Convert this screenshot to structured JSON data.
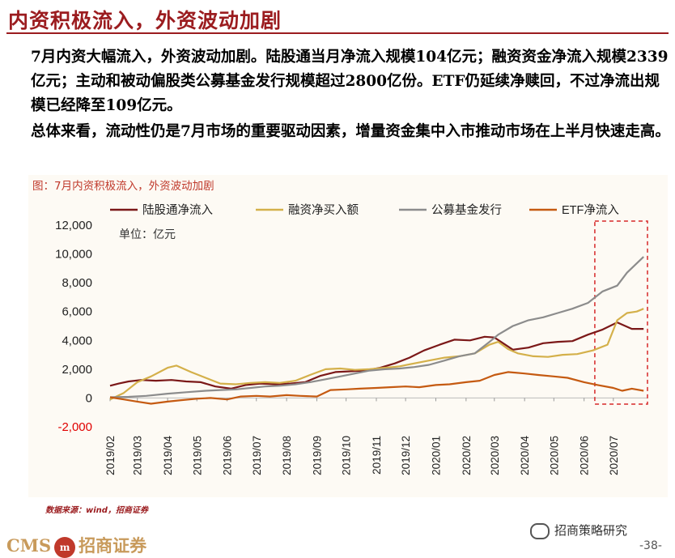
{
  "header": {
    "title": "内资积极流入，外资波动加剧",
    "paragraph1": "7月内资大幅流入，外资波动加剧。陆股通当月净流入规模104亿元；融资资金净流入规模2339亿元；主动和被动偏股类公募基金发行规模超过2800亿份。ETF仍延续净赎回，不过净流出规模已经降至109亿元。",
    "paragraph2": "总体来看，流动性仍是7月市场的重要驱动因素，增量资金集中入市推动市场在上半月快速走高。"
  },
  "chart_label": "图：7月内资积极流入，外资波动加剧",
  "source": "数据来源：wind，招商证券",
  "footer": {
    "brand": "CMS",
    "logo_text": "m",
    "brand_cn": "招商证券",
    "wechat": "招商策略研究",
    "page": "-38-"
  },
  "colors": {
    "陆股通净流入": "#7b1818",
    "融资净买入额": "#d4b04a",
    "公募基金发行": "#8c8c8c",
    "ETF净流入": "#c55a11",
    "highlight": "#d62728"
  },
  "chart_data": {
    "type": "line",
    "unit_label": "单位：亿元",
    "ylim": [
      -2000,
      12000
    ],
    "yticks": [
      -2000,
      0,
      2000,
      4000,
      6000,
      8000,
      10000,
      12000
    ],
    "ytick_labels": [
      "-2,000",
      "0",
      "2,000",
      "4,000",
      "6,000",
      "8,000",
      "10,000",
      "12,000"
    ],
    "x_range": [
      "2019-02-01",
      "2020-08-05"
    ],
    "xticks": [
      "2019/02",
      "2019/03",
      "2019/04",
      "2019/05",
      "2019/06",
      "2019/07",
      "2019/08",
      "2019/09",
      "2019/10",
      "2019/11",
      "2019/12",
      "2020/01",
      "2020/02",
      "2020/03",
      "2020/04",
      "2020/05",
      "2020/06",
      "2020/07"
    ],
    "highlight_range": [
      "2020-06-12",
      "2020-08-05"
    ],
    "legend_position": "top",
    "series": [
      {
        "name": "陆股通净流入",
        "points": [
          [
            "2019-02-01",
            850
          ],
          [
            "2019-02-10",
            1000
          ],
          [
            "2019-02-20",
            1150
          ],
          [
            "2019-03-05",
            1250
          ],
          [
            "2019-03-20",
            1200
          ],
          [
            "2019-04-05",
            1250
          ],
          [
            "2019-04-20",
            1150
          ],
          [
            "2019-05-05",
            1100
          ],
          [
            "2019-05-20",
            800
          ],
          [
            "2019-06-05",
            650
          ],
          [
            "2019-06-20",
            900
          ],
          [
            "2019-07-05",
            1000
          ],
          [
            "2019-07-20",
            950
          ],
          [
            "2019-08-05",
            1000
          ],
          [
            "2019-08-20",
            1100
          ],
          [
            "2019-09-05",
            1550
          ],
          [
            "2019-09-20",
            1800
          ],
          [
            "2019-10-05",
            1850
          ],
          [
            "2019-10-20",
            1900
          ],
          [
            "2019-11-05",
            2100
          ],
          [
            "2019-11-20",
            2400
          ],
          [
            "2019-12-05",
            2800
          ],
          [
            "2019-12-20",
            3300
          ],
          [
            "2020-01-05",
            3700
          ],
          [
            "2020-01-20",
            4050
          ],
          [
            "2020-02-05",
            4000
          ],
          [
            "2020-02-20",
            4250
          ],
          [
            "2020-03-01",
            4200
          ],
          [
            "2020-03-10",
            3800
          ],
          [
            "2020-03-20",
            3350
          ],
          [
            "2020-04-05",
            3500
          ],
          [
            "2020-04-20",
            3800
          ],
          [
            "2020-05-05",
            3900
          ],
          [
            "2020-05-20",
            3950
          ],
          [
            "2020-06-05",
            4400
          ],
          [
            "2020-06-20",
            4750
          ],
          [
            "2020-07-05",
            5250
          ],
          [
            "2020-07-20",
            4800
          ],
          [
            "2020-08-01",
            4800
          ]
        ]
      },
      {
        "name": "融资净买入额",
        "points": [
          [
            "2019-02-01",
            -100
          ],
          [
            "2019-02-15",
            350
          ],
          [
            "2019-03-01",
            1100
          ],
          [
            "2019-03-15",
            1500
          ],
          [
            "2019-04-01",
            2100
          ],
          [
            "2019-04-10",
            2250
          ],
          [
            "2019-04-25",
            1800
          ],
          [
            "2019-05-10",
            1400
          ],
          [
            "2019-05-25",
            1000
          ],
          [
            "2019-06-10",
            950
          ],
          [
            "2019-06-25",
            1050
          ],
          [
            "2019-07-10",
            1100
          ],
          [
            "2019-07-25",
            1050
          ],
          [
            "2019-08-10",
            1200
          ],
          [
            "2019-08-25",
            1600
          ],
          [
            "2019-09-10",
            2000
          ],
          [
            "2019-09-25",
            2050
          ],
          [
            "2019-10-10",
            1950
          ],
          [
            "2019-10-25",
            2000
          ],
          [
            "2019-11-10",
            2100
          ],
          [
            "2019-11-25",
            2200
          ],
          [
            "2019-12-10",
            2400
          ],
          [
            "2019-12-25",
            2600
          ],
          [
            "2020-01-10",
            2800
          ],
          [
            "2020-01-25",
            2900
          ],
          [
            "2020-02-10",
            3100
          ],
          [
            "2020-02-25",
            3700
          ],
          [
            "2020-03-05",
            3900
          ],
          [
            "2020-03-15",
            3400
          ],
          [
            "2020-03-25",
            3100
          ],
          [
            "2020-04-10",
            2900
          ],
          [
            "2020-04-25",
            2850
          ],
          [
            "2020-05-10",
            3000
          ],
          [
            "2020-05-25",
            3050
          ],
          [
            "2020-06-10",
            3300
          ],
          [
            "2020-06-25",
            3700
          ],
          [
            "2020-07-05",
            5400
          ],
          [
            "2020-07-15",
            5900
          ],
          [
            "2020-07-25",
            6000
          ],
          [
            "2020-08-01",
            6200
          ]
        ]
      },
      {
        "name": "公募基金发行",
        "points": [
          [
            "2019-02-01",
            50
          ],
          [
            "2019-02-20",
            80
          ],
          [
            "2019-03-10",
            150
          ],
          [
            "2019-04-01",
            300
          ],
          [
            "2019-04-20",
            400
          ],
          [
            "2019-05-10",
            500
          ],
          [
            "2019-05-25",
            550
          ],
          [
            "2019-06-10",
            600
          ],
          [
            "2019-06-25",
            700
          ],
          [
            "2019-07-10",
            800
          ],
          [
            "2019-07-25",
            850
          ],
          [
            "2019-08-10",
            950
          ],
          [
            "2019-08-25",
            1100
          ],
          [
            "2019-09-10",
            1300
          ],
          [
            "2019-09-25",
            1500
          ],
          [
            "2019-10-10",
            1700
          ],
          [
            "2019-10-25",
            1900
          ],
          [
            "2019-11-10",
            2000
          ],
          [
            "2019-11-25",
            2050
          ],
          [
            "2019-12-10",
            2150
          ],
          [
            "2019-12-25",
            2300
          ],
          [
            "2020-01-10",
            2600
          ],
          [
            "2020-01-25",
            2900
          ],
          [
            "2020-02-10",
            3100
          ],
          [
            "2020-02-25",
            3900
          ],
          [
            "2020-03-05",
            4400
          ],
          [
            "2020-03-20",
            5000
          ],
          [
            "2020-04-05",
            5400
          ],
          [
            "2020-04-20",
            5600
          ],
          [
            "2020-05-05",
            5900
          ],
          [
            "2020-05-20",
            6200
          ],
          [
            "2020-06-05",
            6600
          ],
          [
            "2020-06-20",
            7400
          ],
          [
            "2020-07-05",
            7800
          ],
          [
            "2020-07-15",
            8700
          ],
          [
            "2020-08-01",
            9800
          ]
        ]
      },
      {
        "name": "ETF净流入",
        "points": [
          [
            "2019-02-01",
            50
          ],
          [
            "2019-02-15",
            -100
          ],
          [
            "2019-03-01",
            -250
          ],
          [
            "2019-03-15",
            -400
          ],
          [
            "2019-04-01",
            -250
          ],
          [
            "2019-04-15",
            -150
          ],
          [
            "2019-05-01",
            -50
          ],
          [
            "2019-05-15",
            0
          ],
          [
            "2019-06-01",
            -100
          ],
          [
            "2019-06-15",
            100
          ],
          [
            "2019-07-01",
            150
          ],
          [
            "2019-07-15",
            100
          ],
          [
            "2019-08-01",
            200
          ],
          [
            "2019-08-15",
            150
          ],
          [
            "2019-09-01",
            100
          ],
          [
            "2019-09-15",
            550
          ],
          [
            "2019-10-01",
            600
          ],
          [
            "2019-10-15",
            650
          ],
          [
            "2019-11-01",
            700
          ],
          [
            "2019-11-15",
            750
          ],
          [
            "2019-12-01",
            800
          ],
          [
            "2019-12-15",
            750
          ],
          [
            "2020-01-01",
            900
          ],
          [
            "2020-01-15",
            950
          ],
          [
            "2020-02-01",
            1100
          ],
          [
            "2020-02-15",
            1200
          ],
          [
            "2020-03-01",
            1600
          ],
          [
            "2020-03-15",
            1800
          ],
          [
            "2020-04-01",
            1700
          ],
          [
            "2020-04-15",
            1600
          ],
          [
            "2020-05-01",
            1500
          ],
          [
            "2020-05-15",
            1400
          ],
          [
            "2020-06-01",
            1100
          ],
          [
            "2020-06-15",
            900
          ],
          [
            "2020-07-01",
            700
          ],
          [
            "2020-07-10",
            500
          ],
          [
            "2020-07-20",
            650
          ],
          [
            "2020-08-01",
            500
          ]
        ]
      }
    ]
  }
}
